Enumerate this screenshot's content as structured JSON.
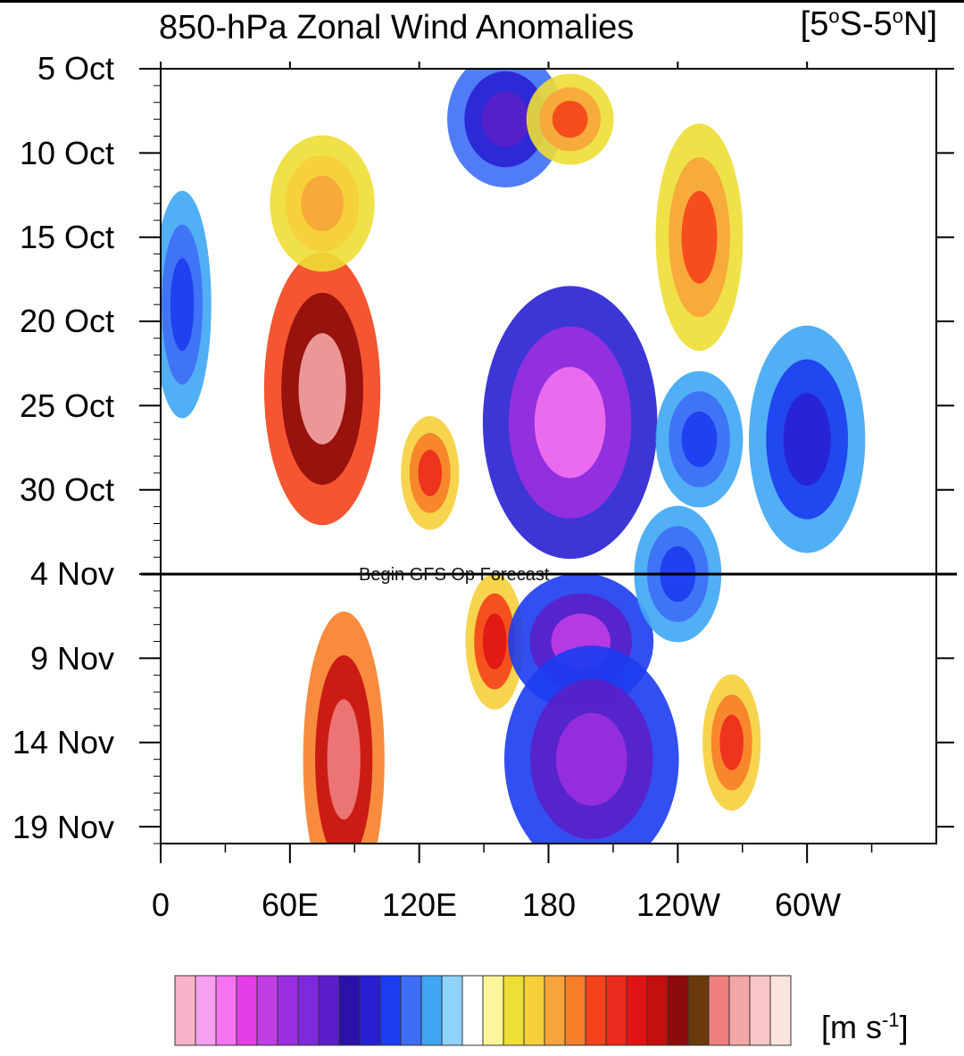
{
  "chart_data": {
    "type": "heatmap",
    "title": "850-hPa Zonal Wind Anomalies",
    "region_label": {
      "main": "[5",
      "deg1": "o",
      "mid": "S-5",
      "deg2": "o",
      "end": "N]"
    },
    "xlabel": "",
    "ylabel": "",
    "x_ticks": [
      "0",
      "60E",
      "120E",
      "180",
      "120W",
      "60W"
    ],
    "x_tick_values_deg_east": [
      0,
      60,
      120,
      180,
      240,
      300
    ],
    "xlim_deg_east": [
      0,
      360
    ],
    "y_ticks": [
      "5 Oct",
      "10 Oct",
      "15 Oct",
      "20 Oct",
      "25 Oct",
      "30 Oct",
      "4 Nov",
      "9 Nov",
      "14 Nov",
      "19 Nov"
    ],
    "y_tick_values_day": [
      0,
      5,
      10,
      15,
      20,
      25,
      30,
      35,
      40,
      45
    ],
    "ylim_day": [
      0,
      46
    ],
    "y_reversed": true,
    "forecast_line": {
      "label": "Begin GFS Op Forecast",
      "day": 30
    },
    "colorbar": {
      "unit": {
        "base": "[m s",
        "exp": "-1",
        "close": "]"
      },
      "colors": [
        "#f9b3c9",
        "#f79ff0",
        "#f572f0",
        "#e43fe6",
        "#c13de6",
        "#9b2fe0",
        "#7d29dd",
        "#5a1fc9",
        "#2a12a8",
        "#2820d2",
        "#1c3cf0",
        "#3e6ef6",
        "#3ea6f4",
        "#8fd2fb",
        "#ffffff",
        "#fbf59c",
        "#eede35",
        "#f6cf3b",
        "#f7a53a",
        "#f77e28",
        "#f4421a",
        "#ec2a1d",
        "#e01414",
        "#c50f0f",
        "#8e0b0b",
        "#6a3a0c",
        "#f07e80",
        "#f4a6a6",
        "#f8c6c6",
        "#fde3df"
      ]
    },
    "anomaly_blobs": [
      {
        "lon": 75,
        "day": 19,
        "rx": 20,
        "ry": 6,
        "anom": 6
      },
      {
        "lon": 85,
        "day": 41,
        "rx": 14,
        "ry": 6.5,
        "anom": 5.5
      },
      {
        "lon": 155,
        "day": 34,
        "rx": 10,
        "ry": 3,
        "anom": 3.5
      },
      {
        "lon": 125,
        "day": 24,
        "rx": 10,
        "ry": 2.5,
        "anom": 3
      },
      {
        "lon": 75,
        "day": 8,
        "rx": 18,
        "ry": 3,
        "anom": 2
      },
      {
        "lon": 190,
        "day": 21,
        "rx": 30,
        "ry": 6,
        "anom": -5.5
      },
      {
        "lon": 195,
        "day": 34,
        "rx": 25,
        "ry": 3,
        "anom": -4.5
      },
      {
        "lon": 200,
        "day": 41,
        "rx": 30,
        "ry": 5,
        "anom": -4
      },
      {
        "lon": 160,
        "day": 3,
        "rx": 20,
        "ry": 3,
        "anom": -3
      },
      {
        "lon": 300,
        "day": 22,
        "rx": 20,
        "ry": 5,
        "anom": -2.5
      },
      {
        "lon": 10,
        "day": 14,
        "rx": 10,
        "ry": 5,
        "anom": -2
      },
      {
        "lon": 250,
        "day": 10,
        "rx": 15,
        "ry": 5,
        "anom": 2.5
      },
      {
        "lon": 190,
        "day": 3,
        "rx": 15,
        "ry": 2,
        "anom": 2.5
      },
      {
        "lon": 250,
        "day": 22,
        "rx": 15,
        "ry": 3,
        "anom": -2
      },
      {
        "lon": 265,
        "day": 40,
        "rx": 10,
        "ry": 3,
        "anom": 3
      },
      {
        "lon": 240,
        "day": 30,
        "rx": 15,
        "ry": 3,
        "anom": -2
      }
    ]
  }
}
